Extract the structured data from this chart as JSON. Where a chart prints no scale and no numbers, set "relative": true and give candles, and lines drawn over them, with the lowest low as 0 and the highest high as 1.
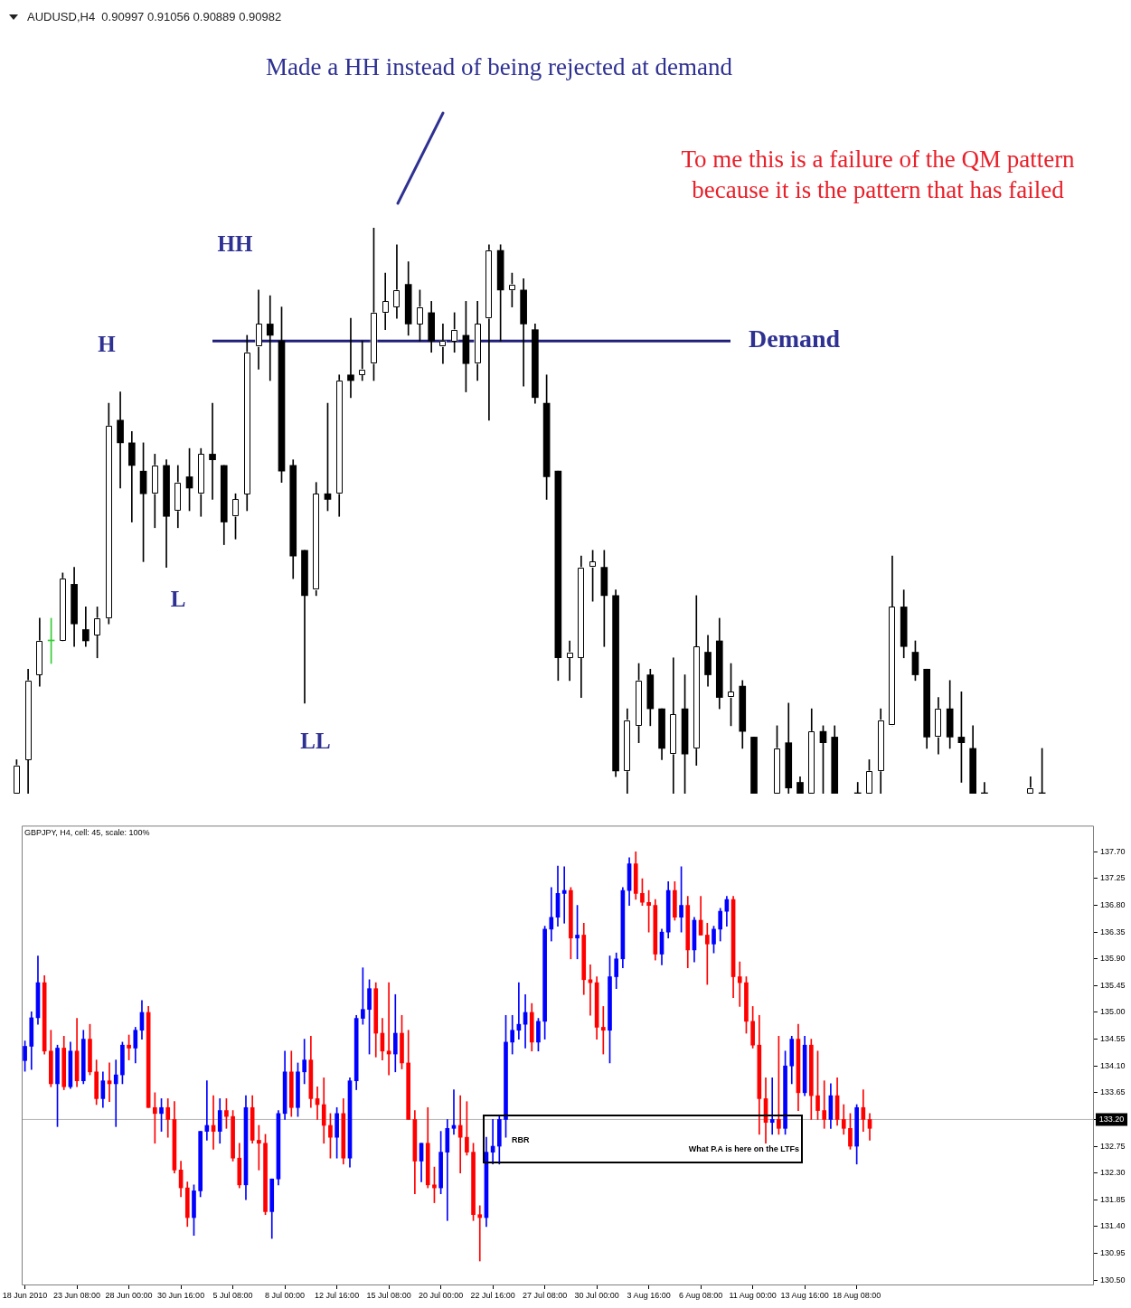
{
  "chart_data": [
    {
      "type": "candlestick",
      "title": "AUDUSD,H4  0.90997 0.91056 0.90889 0.90982",
      "relative": true,
      "categories": [
        null,
        null,
        null,
        null,
        null,
        null,
        null,
        null,
        null,
        null,
        null,
        null,
        null,
        null,
        null,
        null,
        null,
        null,
        null,
        null,
        null,
        null,
        null,
        null,
        null,
        null,
        null,
        null,
        null,
        null,
        null,
        null,
        null,
        null,
        null,
        null,
        null,
        null,
        null,
        null,
        null,
        null,
        null,
        null,
        null,
        null,
        null,
        null,
        null,
        null,
        null,
        null,
        null,
        null,
        null,
        null,
        null,
        null,
        null,
        null,
        null,
        null,
        null,
        null,
        null,
        null,
        null,
        null,
        null,
        null,
        null,
        null,
        null,
        null,
        null,
        null,
        null,
        null,
        null,
        null,
        null,
        null,
        null,
        null,
        null,
        null,
        null,
        null,
        null,
        null
      ],
      "ohlc": [
        [
          0,
          0.06,
          0,
          0.05
        ],
        [
          0.06,
          0.22,
          0,
          0.2
        ],
        [
          0.21,
          0.31,
          0.19,
          0.27
        ],
        [
          0.27,
          0.31,
          0.23,
          0.27
        ],
        [
          0.27,
          0.39,
          0.27,
          0.38
        ],
        [
          0.37,
          0.4,
          0.26,
          0.3
        ],
        [
          0.29,
          0.33,
          0.26,
          0.27
        ],
        [
          0.28,
          0.33,
          0.24,
          0.31
        ],
        [
          0.31,
          0.69,
          0.3,
          0.65
        ],
        [
          0.66,
          0.71,
          0.54,
          0.62
        ],
        [
          0.62,
          0.64,
          0.48,
          0.58
        ],
        [
          0.57,
          0.62,
          0.41,
          0.53
        ],
        [
          0.53,
          0.6,
          0.47,
          0.58
        ],
        [
          0.58,
          0.59,
          0.4,
          0.49
        ],
        [
          0.5,
          0.58,
          0.47,
          0.55
        ],
        [
          0.56,
          0.61,
          0.5,
          0.54
        ],
        [
          0.53,
          0.61,
          0.49,
          0.6
        ],
        [
          0.6,
          0.69,
          0.52,
          0.59
        ],
        [
          0.58,
          0.58,
          0.44,
          0.48
        ],
        [
          0.49,
          0.53,
          0.45,
          0.52
        ],
        [
          0.53,
          0.81,
          0.5,
          0.78
        ],
        [
          0.79,
          0.89,
          0.75,
          0.83
        ],
        [
          0.83,
          0.88,
          0.73,
          0.81
        ],
        [
          0.8,
          0.86,
          0.55,
          0.57
        ],
        [
          0.58,
          0.59,
          0.38,
          0.42
        ],
        [
          0.43,
          0.43,
          0.16,
          0.35
        ],
        [
          0.36,
          0.55,
          0.35,
          0.53
        ],
        [
          0.53,
          0.69,
          0.5,
          0.52
        ],
        [
          0.53,
          0.74,
          0.49,
          0.73
        ],
        [
          0.74,
          0.84,
          0.7,
          0.73
        ],
        [
          0.74,
          0.8,
          0.73,
          0.75
        ],
        [
          0.76,
          1,
          0.73,
          0.85
        ],
        [
          0.85,
          0.92,
          0.82,
          0.87
        ],
        [
          0.86,
          0.97,
          0.84,
          0.89
        ],
        [
          0.9,
          0.94,
          0.81,
          0.83
        ],
        [
          0.83,
          0.89,
          0.8,
          0.86
        ],
        [
          0.85,
          0.87,
          0.78,
          0.8
        ],
        [
          0.79,
          0.83,
          0.76,
          0.8
        ],
        [
          0.8,
          0.85,
          0.78,
          0.82
        ],
        [
          0.81,
          0.87,
          0.71,
          0.76
        ],
        [
          0.76,
          0.87,
          0.73,
          0.83
        ],
        [
          0.84,
          0.97,
          0.66,
          0.96
        ],
        [
          0.96,
          0.97,
          0.8,
          0.89
        ],
        [
          0.89,
          0.92,
          0.86,
          0.9
        ],
        [
          0.89,
          0.91,
          0.72,
          0.83
        ],
        [
          0.82,
          0.83,
          0.69,
          0.7
        ],
        [
          0.69,
          0.74,
          0.52,
          0.56
        ],
        [
          0.57,
          0.57,
          0.2,
          0.24
        ],
        [
          0.24,
          0.27,
          0.2,
          0.25
        ],
        [
          0.24,
          0.42,
          0.17,
          0.4
        ],
        [
          0.4,
          0.43,
          0.34,
          0.41
        ],
        [
          0.4,
          0.43,
          0.26,
          0.35
        ],
        [
          0.35,
          0.36,
          0.03,
          0.04
        ],
        [
          0.04,
          0.15,
          0,
          0.13
        ],
        [
          0.12,
          0.23,
          0.09,
          0.2
        ],
        [
          0.21,
          0.22,
          0.12,
          0.15
        ],
        [
          0.15,
          0.15,
          0.06,
          0.08
        ],
        [
          0.07,
          0.24,
          0,
          0.14
        ],
        [
          0.15,
          0.21,
          0,
          0.07
        ],
        [
          0.08,
          0.35,
          0.05,
          0.26
        ],
        [
          0.25,
          0.28,
          0.19,
          0.21
        ],
        [
          0.27,
          0.31,
          0.15,
          0.17
        ],
        [
          0.17,
          0.23,
          0.12,
          0.18
        ],
        [
          0.19,
          0.2,
          0.08,
          0.11
        ],
        [
          0.1,
          0.1,
          0,
          0
        ],
        null,
        [
          0,
          0.12,
          0,
          0.08
        ],
        [
          0.09,
          0.16,
          0,
          0.01
        ],
        [
          0.02,
          0.03,
          0,
          0
        ],
        [
          0,
          0.15,
          0,
          0.11
        ],
        [
          0.11,
          0.12,
          0,
          0.09
        ],
        [
          0.1,
          0.12,
          0,
          0
        ],
        null,
        [
          0,
          0.02,
          0,
          0
        ],
        [
          0,
          0.06,
          0,
          0.04
        ],
        [
          0.04,
          0.15,
          0,
          0.13
        ],
        [
          0.12,
          0.42,
          0.12,
          0.33
        ],
        [
          0.33,
          0.36,
          0.24,
          0.26
        ],
        [
          0.25,
          0.27,
          0.2,
          0.21
        ],
        [
          0.22,
          0.22,
          0.08,
          0.1
        ],
        [
          0.1,
          0.17,
          0.07,
          0.15
        ],
        [
          0.15,
          0.2,
          0.08,
          0.1
        ],
        [
          0.1,
          0.18,
          0.02,
          0.09
        ],
        [
          0.08,
          0.12,
          0,
          0
        ],
        [
          0,
          0.02,
          0,
          0
        ],
        null,
        null,
        null,
        [
          0,
          0.03,
          0,
          0.01
        ],
        [
          0,
          0.08,
          0,
          0
        ]
      ],
      "colors": [
        "#ffffff",
        "#ffffff",
        "#ffffff",
        "#33cc33",
        "#ffffff",
        "#000000",
        "#000000",
        "#ffffff",
        "#ffffff",
        "#000000",
        "#000000",
        "#000000",
        "#ffffff",
        "#000000",
        "#ffffff",
        "#000000",
        "#ffffff",
        "#000000",
        "#000000",
        "#ffffff",
        "#ffffff",
        "#ffffff",
        "#000000",
        "#000000",
        "#000000",
        "#000000",
        "#ffffff",
        "#000000",
        "#ffffff",
        "#000000",
        "#ffffff",
        "#ffffff",
        "#ffffff",
        "#ffffff",
        "#000000",
        "#ffffff",
        "#000000",
        "#ffffff",
        "#ffffff",
        "#000000",
        "#ffffff",
        "#ffffff",
        "#000000",
        "#ffffff",
        "#000000",
        "#000000",
        "#000000",
        "#000000",
        "#ffffff",
        "#ffffff",
        "#ffffff",
        "#000000",
        "#000000",
        "#ffffff",
        "#ffffff",
        "#000000",
        "#000000",
        "#ffffff",
        "#000000",
        "#ffffff",
        "#000000",
        "#000000",
        "#ffffff",
        "#000000",
        "#000000",
        null,
        "#ffffff",
        "#000000",
        "#000000",
        "#ffffff",
        "#000000",
        "#000000",
        null,
        "#000000",
        "#ffffff",
        "#ffffff",
        "#ffffff",
        "#000000",
        "#000000",
        "#000000",
        "#ffffff",
        "#000000",
        "#000000",
        "#000000",
        "#000000",
        null,
        null,
        null,
        "#ffffff",
        "#000000"
      ],
      "ref_lines": [
        {
          "axis": "y",
          "value": 0.8,
          "label": "Demand",
          "color": "#1f1f7a"
        }
      ],
      "annotations": [
        "Made a HH instead of being rejected at demand",
        "To me this is a failure of the QM pattern because it is the pattern that has failed",
        "H",
        "HH",
        "L",
        "LL"
      ]
    },
    {
      "type": "candlestick",
      "title": "GBPJPY, H4, cell: 45, scale: 100%",
      "categories": [
        "18 Jun 2010",
        null,
        null,
        null,
        null,
        null,
        null,
        null,
        "23 Jun 08:00",
        null,
        null,
        null,
        null,
        null,
        null,
        null,
        "28 Jun 00:00",
        null,
        null,
        null,
        null,
        null,
        null,
        null,
        "30 Jun 16:00",
        null,
        null,
        null,
        null,
        null,
        null,
        null,
        "5 Jul 08:00",
        null,
        null,
        null,
        null,
        null,
        null,
        null,
        "8 Jul 00:00",
        null,
        null,
        null,
        null,
        null,
        null,
        null,
        "12 Jul 16:00",
        null,
        null,
        null,
        null,
        null,
        null,
        null,
        "15 Jul 08:00",
        null,
        null,
        null,
        null,
        null,
        null,
        null,
        "20 Jul 00:00",
        null,
        null,
        null,
        null,
        null,
        null,
        null,
        "22 Jul 16:00",
        null,
        null,
        null,
        null,
        null,
        null,
        null,
        "27 Jul 08:00",
        null,
        null,
        null,
        null,
        null,
        null,
        null,
        "30 Jul 00:00",
        null,
        null,
        null,
        null,
        null,
        null,
        null,
        "3 Aug 16:00",
        null,
        null,
        null,
        null,
        null,
        null,
        null,
        "6 Aug 08:00",
        null,
        null,
        null,
        null,
        null,
        null,
        null,
        "11 Aug 00:00",
        null,
        null,
        null,
        null,
        null,
        null,
        null,
        "13 Aug 16:00",
        null,
        null,
        null,
        null,
        null,
        null,
        null,
        "18 Aug 08:00",
        null,
        null,
        null,
        null,
        null,
        null,
        null,
        null,
        null,
        null,
        null,
        null,
        null,
        null,
        null,
        null,
        null,
        null,
        null,
        null,
        null,
        null,
        null,
        null,
        null,
        null,
        null,
        null,
        null,
        null,
        null,
        null,
        null,
        null,
        null,
        null
      ],
      "ohlc": [
        [
          134.19,
          134.52,
          134.01,
          134.43
        ],
        [
          134.43,
          135.01,
          134.04,
          134.91
        ],
        [
          134.91,
          135.95,
          134.8,
          135.5
        ],
        [
          135.5,
          135.62,
          134.3,
          134.35
        ],
        [
          134.35,
          134.7,
          133.75,
          133.8
        ],
        [
          133.8,
          134.45,
          133.08,
          134.4
        ],
        [
          134.4,
          134.6,
          133.7,
          133.75
        ],
        [
          133.75,
          134.5,
          133.72,
          134.35
        ],
        [
          134.35,
          134.9,
          133.75,
          133.85
        ],
        [
          133.85,
          134.7,
          133.8,
          134.55
        ],
        [
          134.55,
          134.8,
          133.95,
          134
        ],
        [
          134,
          134.2,
          133.45,
          133.55
        ],
        [
          133.55,
          134,
          133.4,
          133.85
        ],
        [
          133.85,
          134.15,
          133.5,
          133.8
        ],
        [
          133.8,
          134.2,
          133.08,
          133.95
        ],
        [
          133.95,
          134.5,
          133.8,
          134.45
        ],
        [
          134.45,
          134.62,
          134.2,
          134.4
        ],
        [
          134.4,
          134.75,
          134.15,
          134.7
        ],
        [
          134.7,
          135.2,
          134.55,
          135
        ],
        [
          135,
          135.1,
          133.4,
          133.4
        ],
        [
          133.4,
          133.65,
          132.8,
          133.3
        ],
        [
          133.3,
          133.55,
          133,
          133.4
        ],
        [
          133.4,
          133.55,
          132.9,
          133.2
        ],
        [
          133.2,
          133.5,
          132.3,
          132.35
        ],
        [
          132.35,
          132.5,
          131.9,
          132.05
        ],
        [
          132.05,
          132.15,
          131.4,
          131.55
        ],
        [
          131.55,
          132.1,
          131.25,
          132
        ],
        [
          132,
          133,
          131.9,
          133
        ],
        [
          133,
          133.85,
          132.85,
          133.1
        ],
        [
          133.1,
          133.6,
          132.7,
          133
        ],
        [
          133,
          133.55,
          132.8,
          133.35
        ],
        [
          133.35,
          133.55,
          133.05,
          133.25
        ],
        [
          133.25,
          133.35,
          132.5,
          132.55
        ],
        [
          132.55,
          132.8,
          132.05,
          132.1
        ],
        [
          132.1,
          133.6,
          131.85,
          133.4
        ],
        [
          133.4,
          133.6,
          132.8,
          132.85
        ],
        [
          132.85,
          133.1,
          132.35,
          132.8
        ],
        [
          132.8,
          132.95,
          131.6,
          131.65
        ],
        [
          131.65,
          132.2,
          131.2,
          132.2
        ],
        [
          132.2,
          133.35,
          132.1,
          133.3
        ],
        [
          133.3,
          134.35,
          133.2,
          134
        ],
        [
          134,
          134.35,
          133.25,
          133.4
        ],
        [
          133.4,
          134.15,
          133.25,
          134
        ],
        [
          134,
          134.55,
          133.8,
          134.2
        ],
        [
          134.2,
          134.6,
          133.4,
          133.55
        ],
        [
          133.55,
          133.75,
          133.2,
          133.45
        ],
        [
          133.45,
          133.9,
          132.8,
          133.1
        ],
        [
          133.1,
          133.3,
          132.55,
          132.9
        ],
        [
          132.9,
          133.4,
          132.55,
          133.3
        ],
        [
          133.3,
          133.55,
          132.45,
          132.55
        ],
        [
          132.55,
          133.9,
          132.4,
          133.85
        ],
        [
          133.85,
          134.95,
          133.7,
          134.9
        ],
        [
          134.9,
          135.75,
          134.8,
          135.05
        ],
        [
          135.05,
          135.55,
          134.3,
          135.4
        ],
        [
          135.4,
          135.5,
          134.25,
          134.65
        ],
        [
          134.65,
          134.9,
          134.2,
          134.35
        ],
        [
          134.35,
          135.5,
          133.95,
          134.3
        ],
        [
          134.3,
          135.3,
          134,
          134.65
        ],
        [
          134.65,
          134.95,
          134.05,
          134.15
        ],
        [
          134.15,
          134.7,
          133.2,
          133.2
        ],
        [
          133.2,
          133.35,
          131.95,
          132.5
        ],
        [
          132.5,
          132.8,
          132.15,
          132.8
        ],
        [
          132.8,
          133.4,
          132.05,
          132.1
        ],
        [
          132.1,
          132.4,
          131.8,
          132.05
        ],
        [
          132.05,
          133,
          131.95,
          132.65
        ],
        [
          132.65,
          133.2,
          131.5,
          133.05
        ],
        [
          133.05,
          133.7,
          132.95,
          133.1
        ],
        [
          133.1,
          133.6,
          132.3,
          132.9
        ],
        [
          132.9,
          133.5,
          132.6,
          132.65
        ],
        [
          132.65,
          132.8,
          131.5,
          131.6
        ],
        [
          131.6,
          131.75,
          130.82,
          131.55
        ],
        [
          131.55,
          132.9,
          131.4,
          132.65
        ],
        [
          132.65,
          133.2,
          132.45,
          132.75
        ],
        [
          132.75,
          133.25,
          132.45,
          133.2
        ],
        [
          133.2,
          134.95,
          132.9,
          134.5
        ],
        [
          134.5,
          134.95,
          134.3,
          134.7
        ],
        [
          134.7,
          135.5,
          134.55,
          134.8
        ],
        [
          134.8,
          135.3,
          134.4,
          135
        ],
        [
          135,
          135.15,
          134.35,
          134.5
        ],
        [
          134.5,
          134.9,
          134.35,
          134.85
        ],
        [
          134.85,
          136.45,
          134.55,
          136.4
        ],
        [
          136.4,
          137.1,
          136.2,
          136.6
        ],
        [
          136.6,
          137.46,
          136.45,
          137
        ],
        [
          137,
          137.45,
          136.5,
          137.05
        ],
        [
          137.05,
          137.1,
          135.9,
          136.25
        ],
        [
          136.25,
          136.8,
          135.9,
          136.3
        ],
        [
          136.3,
          136.5,
          135.3,
          135.55
        ],
        [
          135.55,
          135.8,
          134.95,
          135.5
        ],
        [
          135.5,
          135.6,
          134.55,
          134.75
        ],
        [
          134.75,
          135.1,
          134.3,
          134.7
        ],
        [
          134.7,
          135.95,
          134.15,
          135.6
        ],
        [
          135.6,
          136,
          135.4,
          135.9
        ],
        [
          135.9,
          137.1,
          135.75,
          137.05
        ],
        [
          137.05,
          137.6,
          136.8,
          137.5
        ],
        [
          137.5,
          137.7,
          136.9,
          137
        ],
        [
          137,
          137.25,
          136.8,
          136.85
        ],
        [
          136.85,
          137.05,
          136.35,
          136.8
        ],
        [
          136.8,
          136.9,
          135.88,
          135.98
        ],
        [
          135.98,
          136.4,
          135.8,
          136.35
        ],
        [
          136.35,
          137.2,
          136.25,
          137.05
        ],
        [
          137.05,
          137.2,
          136.55,
          136.6
        ],
        [
          136.6,
          137.45,
          136.35,
          136.8
        ],
        [
          136.8,
          136.95,
          135.75,
          136.05
        ],
        [
          136.05,
          136.6,
          135.85,
          136.55
        ],
        [
          136.55,
          136.95,
          136.3,
          136.3
        ],
        [
          136.3,
          136.5,
          135.47,
          136.15
        ],
        [
          136.15,
          136.45,
          136,
          136.4
        ],
        [
          136.4,
          136.75,
          136.2,
          136.7
        ],
        [
          136.7,
          136.95,
          136.45,
          136.9
        ],
        [
          136.9,
          136.95,
          135.25,
          135.6
        ],
        [
          135.6,
          135.85,
          135.1,
          135.5
        ],
        [
          135.5,
          135.6,
          134.65,
          134.85
        ],
        [
          134.85,
          135.1,
          134.4,
          134.45
        ],
        [
          134.45,
          134.95,
          132.95,
          133.55
        ],
        [
          133.55,
          133.9,
          132.8,
          133.15
        ],
        [
          133.15,
          133.9,
          132.95,
          133.2
        ],
        [
          133.2,
          134.6,
          132.95,
          133.05
        ],
        [
          133.05,
          134.35,
          132.95,
          134.1
        ],
        [
          134.1,
          134.6,
          133.8,
          134.55
        ],
        [
          134.55,
          134.8,
          133.35,
          133.65
        ],
        [
          133.65,
          134.6,
          133.6,
          134.45
        ],
        [
          134.45,
          134.55,
          133.2,
          133.6
        ],
        [
          133.6,
          134.35,
          133.2,
          133.35
        ],
        [
          133.35,
          133.85,
          133.05,
          133.2
        ],
        [
          133.2,
          133.8,
          133.05,
          133.6
        ],
        [
          133.6,
          133.9,
          133.1,
          133.2
        ],
        [
          133.2,
          133.45,
          132.95,
          133.05
        ],
        [
          133.05,
          133.3,
          132.7,
          132.75
        ],
        [
          132.75,
          133.45,
          132.45,
          133.4
        ],
        [
          133.4,
          133.7,
          133,
          133.2
        ],
        [
          133.2,
          133.3,
          132.85,
          133.05
        ],
        null,
        null,
        null,
        null,
        null,
        null,
        null,
        null,
        null,
        null,
        null,
        null,
        null,
        null,
        null,
        null,
        null,
        null,
        null,
        null,
        null,
        null,
        null,
        null,
        null,
        null,
        null,
        null,
        null,
        null,
        null,
        null,
        null,
        null
      ],
      "colors": [
        "#0000ff",
        "#0000ff",
        "#0000ff",
        "#ff0000",
        "#ff0000",
        "#0000ff",
        "#ff0000",
        "#0000ff",
        "#ff0000",
        "#0000ff",
        "#ff0000",
        "#ff0000",
        "#0000ff",
        "#ff0000",
        "#0000ff",
        "#0000ff",
        "#ff0000",
        "#0000ff",
        "#0000ff",
        "#ff0000",
        "#ff0000",
        "#0000ff",
        "#ff0000",
        "#ff0000",
        "#ff0000",
        "#ff0000",
        "#0000ff",
        "#0000ff",
        "#0000ff",
        "#ff0000",
        "#0000ff",
        "#ff0000",
        "#ff0000",
        "#ff0000",
        "#0000ff",
        "#ff0000",
        "#ff0000",
        "#ff0000",
        "#0000ff",
        "#0000ff",
        "#0000ff",
        "#ff0000",
        "#0000ff",
        "#0000ff",
        "#ff0000",
        "#ff0000",
        "#ff0000",
        "#ff0000",
        "#0000ff",
        "#ff0000",
        "#0000ff",
        "#0000ff",
        "#0000ff",
        "#0000ff",
        "#ff0000",
        "#ff0000",
        "#ff0000",
        "#0000ff",
        "#ff0000",
        "#ff0000",
        "#ff0000",
        "#0000ff",
        "#ff0000",
        "#ff0000",
        "#0000ff",
        "#0000ff",
        "#0000ff",
        "#ff0000",
        "#ff0000",
        "#ff0000",
        "#ff0000",
        "#0000ff",
        "#0000ff",
        "#0000ff",
        "#0000ff",
        "#0000ff",
        "#0000ff",
        "#0000ff",
        "#ff0000",
        "#0000ff",
        "#0000ff",
        "#0000ff",
        "#0000ff",
        "#0000ff",
        "#ff0000",
        "#0000ff",
        "#ff0000",
        "#ff0000",
        "#ff0000",
        "#ff0000",
        "#0000ff",
        "#0000ff",
        "#0000ff",
        "#0000ff",
        "#ff0000",
        "#ff0000",
        "#ff0000",
        "#ff0000",
        "#0000ff",
        "#0000ff",
        "#ff0000",
        "#0000ff",
        "#ff0000",
        "#0000ff",
        "#ff0000",
        "#ff0000",
        "#0000ff",
        "#0000ff",
        "#0000ff",
        "#ff0000",
        "#ff0000",
        "#ff0000",
        "#ff0000",
        "#ff0000",
        "#ff0000",
        "#0000ff",
        "#ff0000",
        "#0000ff",
        "#0000ff",
        "#ff0000",
        "#0000ff",
        "#ff0000",
        "#ff0000",
        "#ff0000",
        "#0000ff",
        "#ff0000",
        "#ff0000",
        "#ff0000",
        "#0000ff",
        "#ff0000",
        "#ff0000",
        null,
        null,
        null,
        null,
        null,
        null,
        null,
        null,
        null,
        null,
        null,
        null,
        null,
        null,
        null,
        null,
        null,
        null,
        null,
        null,
        null,
        null,
        null,
        null,
        null,
        null,
        null,
        null,
        null,
        null,
        null,
        null,
        null,
        null
      ],
      "ylim": [
        130.41,
        138.14
      ],
      "yticks": [
        {
          "value": 130.5,
          "label": "130.50"
        },
        {
          "value": 130.95,
          "label": "130.95"
        },
        {
          "value": 131.4,
          "label": "131.40"
        },
        {
          "value": 131.85,
          "label": "131.85"
        },
        {
          "value": 132.3,
          "label": "132.30"
        },
        {
          "value": 132.75,
          "label": "132.75"
        },
        {
          "value": 133.2,
          "label": "133.20"
        },
        {
          "value": 133.65,
          "label": "133.65"
        },
        {
          "value": 134.1,
          "label": "134.10"
        },
        {
          "value": 134.55,
          "label": "134.55"
        },
        {
          "value": 135,
          "label": "135.00"
        },
        {
          "value": 135.45,
          "label": "135.45"
        },
        {
          "value": 135.9,
          "label": "135.90"
        },
        {
          "value": 136.35,
          "label": "136.35"
        },
        {
          "value": 136.8,
          "label": "136.80"
        },
        {
          "value": 137.25,
          "label": "137.25"
        },
        {
          "value": 137.7,
          "label": "137.70"
        }
      ],
      "ref_lines": [
        {
          "axis": "y",
          "value": 133.2,
          "label": "133.20",
          "color": "#b4b4b4"
        }
      ],
      "annotations": [
        "RBR",
        "What P.A is here on the LTFs"
      ]
    }
  ]
}
